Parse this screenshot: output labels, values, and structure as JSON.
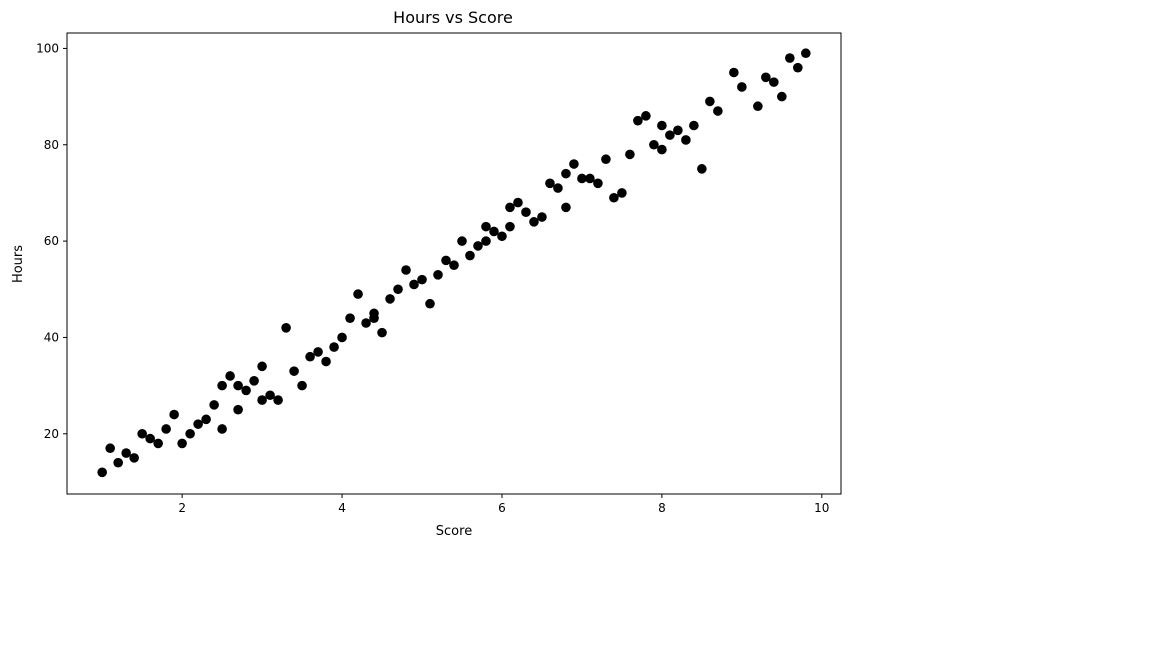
{
  "chart_data": {
    "type": "scatter",
    "title": "Hours vs Score",
    "xlabel": "Score",
    "ylabel": "Hours",
    "xlim": [
      0.56,
      10.24
    ],
    "ylim": [
      7.5,
      103.2
    ],
    "x_ticks": [
      2,
      4,
      6,
      8,
      10
    ],
    "y_ticks": [
      20,
      40,
      60,
      80,
      100
    ],
    "grid": false,
    "marker_color": "#000000",
    "series": [
      {
        "points": [
          [
            1.0,
            12
          ],
          [
            1.1,
            17
          ],
          [
            1.2,
            14
          ],
          [
            1.3,
            16
          ],
          [
            1.4,
            15
          ],
          [
            1.5,
            20
          ],
          [
            1.6,
            19
          ],
          [
            1.7,
            18
          ],
          [
            1.8,
            21
          ],
          [
            1.9,
            24
          ],
          [
            2.0,
            18
          ],
          [
            2.1,
            20
          ],
          [
            2.2,
            22
          ],
          [
            2.3,
            23
          ],
          [
            2.4,
            26
          ],
          [
            2.5,
            21
          ],
          [
            2.5,
            30
          ],
          [
            2.6,
            32
          ],
          [
            2.7,
            30
          ],
          [
            2.7,
            25
          ],
          [
            2.8,
            29
          ],
          [
            2.9,
            31
          ],
          [
            3.0,
            34
          ],
          [
            3.0,
            27
          ],
          [
            3.1,
            28
          ],
          [
            3.2,
            27
          ],
          [
            3.3,
            42
          ],
          [
            3.4,
            33
          ],
          [
            3.5,
            30
          ],
          [
            3.6,
            36
          ],
          [
            3.7,
            37
          ],
          [
            3.8,
            35
          ],
          [
            3.9,
            38
          ],
          [
            4.0,
            40
          ],
          [
            4.1,
            44
          ],
          [
            4.2,
            49
          ],
          [
            4.3,
            43
          ],
          [
            4.4,
            44
          ],
          [
            4.4,
            45
          ],
          [
            4.5,
            41
          ],
          [
            4.6,
            48
          ],
          [
            4.7,
            50
          ],
          [
            4.8,
            54
          ],
          [
            4.9,
            51
          ],
          [
            5.0,
            52
          ],
          [
            5.1,
            47
          ],
          [
            5.2,
            53
          ],
          [
            5.3,
            56
          ],
          [
            5.4,
            55
          ],
          [
            5.5,
            60
          ],
          [
            5.6,
            57
          ],
          [
            5.7,
            59
          ],
          [
            5.8,
            60
          ],
          [
            5.8,
            63
          ],
          [
            5.9,
            62
          ],
          [
            6.0,
            61
          ],
          [
            6.1,
            63
          ],
          [
            6.1,
            67
          ],
          [
            6.2,
            68
          ],
          [
            6.3,
            66
          ],
          [
            6.4,
            64
          ],
          [
            6.5,
            65
          ],
          [
            6.6,
            72
          ],
          [
            6.7,
            71
          ],
          [
            6.8,
            74
          ],
          [
            6.8,
            67
          ],
          [
            6.9,
            76
          ],
          [
            7.0,
            73
          ],
          [
            7.1,
            73
          ],
          [
            7.2,
            72
          ],
          [
            7.3,
            77
          ],
          [
            7.4,
            69
          ],
          [
            7.5,
            70
          ],
          [
            7.6,
            78
          ],
          [
            7.7,
            85
          ],
          [
            7.8,
            86
          ],
          [
            7.9,
            80
          ],
          [
            8.0,
            84
          ],
          [
            8.0,
            79
          ],
          [
            8.1,
            82
          ],
          [
            8.2,
            83
          ],
          [
            8.3,
            81
          ],
          [
            8.4,
            84
          ],
          [
            8.5,
            75
          ],
          [
            8.6,
            89
          ],
          [
            8.7,
            87
          ],
          [
            8.9,
            95
          ],
          [
            9.0,
            92
          ],
          [
            9.2,
            88
          ],
          [
            9.3,
            94
          ],
          [
            9.4,
            93
          ],
          [
            9.5,
            90
          ],
          [
            9.6,
            98
          ],
          [
            9.7,
            96
          ],
          [
            9.8,
            99
          ]
        ]
      }
    ]
  }
}
